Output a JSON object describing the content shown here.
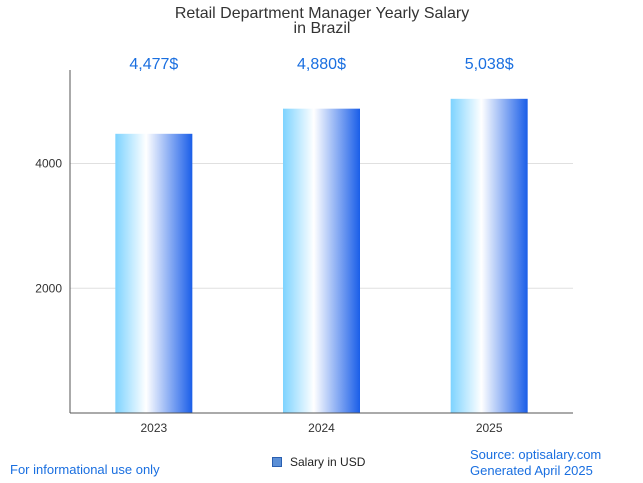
{
  "chart_data": {
    "type": "bar",
    "title": [
      "Retail Department Manager Yearly Salary",
      "in Brazil"
    ],
    "categories": [
      "2023",
      "2024",
      "2025"
    ],
    "series": [
      {
        "name": "Salary in USD",
        "values": [
          4477,
          4880,
          5038
        ]
      }
    ],
    "value_labels": [
      "4,477$",
      "4,880$",
      "5,038$"
    ],
    "yticks": [
      2000,
      4000
    ],
    "ylim": [
      0,
      5500
    ],
    "grid": true,
    "legend": "bottom-center",
    "colors": {
      "bar_edge": "#1a5ee8",
      "bar_light": "#ffffff",
      "bar_left": "#7dd3ff",
      "label": "#1a6fe0"
    }
  },
  "footer": {
    "left": "For informational use only",
    "source": "Source: optisalary.com",
    "generated": "Generated April 2025"
  }
}
